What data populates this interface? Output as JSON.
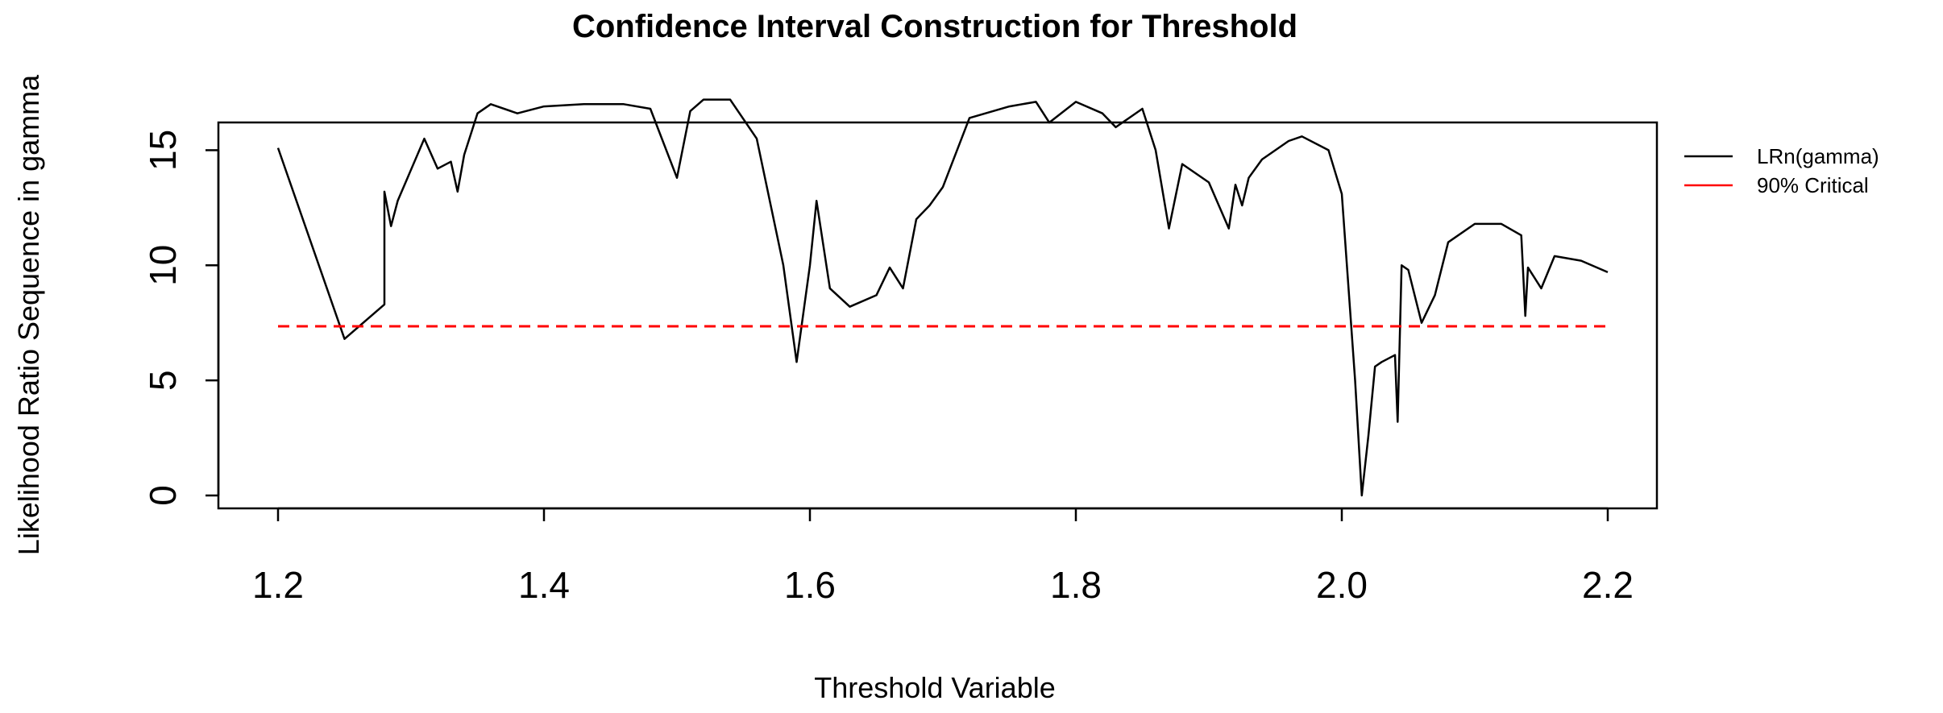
{
  "chart_data": {
    "type": "line",
    "title": "Confidence Interval Construction for Threshold",
    "xlabel": "Threshold Variable",
    "ylabel": "Likelihood Ratio Sequence in gamma",
    "xlim": [
      1.2,
      2.2
    ],
    "ylim": [
      0,
      17.5
    ],
    "xticks": [
      "1.2",
      "1.4",
      "1.6",
      "1.8",
      "2.0",
      "2.2"
    ],
    "yticks": [
      "0",
      "5",
      "10",
      "15"
    ],
    "legend": {
      "placement": "right, outside top"
    },
    "grid": false,
    "series": [
      {
        "name": "LRn(gamma)",
        "color": "#000000",
        "style": "solid",
        "x": [
          1.2,
          1.25,
          1.28,
          1.28,
          1.285,
          1.29,
          1.31,
          1.32,
          1.33,
          1.335,
          1.34,
          1.35,
          1.36,
          1.38,
          1.4,
          1.43,
          1.46,
          1.48,
          1.5,
          1.51,
          1.52,
          1.54,
          1.56,
          1.58,
          1.59,
          1.6,
          1.605,
          1.615,
          1.63,
          1.65,
          1.66,
          1.67,
          1.68,
          1.69,
          1.7,
          1.72,
          1.75,
          1.77,
          1.78,
          1.8,
          1.82,
          1.83,
          1.85,
          1.86,
          1.87,
          1.88,
          1.9,
          1.915,
          1.92,
          1.925,
          1.93,
          1.94,
          1.96,
          1.97,
          1.99,
          2.0,
          2.01,
          2.015,
          2.02,
          2.025,
          2.03,
          2.04,
          2.042,
          2.045,
          2.05,
          2.06,
          2.07,
          2.08,
          2.1,
          2.12,
          2.135,
          2.138,
          2.14,
          2.15,
          2.16,
          2.18,
          2.2
        ],
        "y": [
          15.1,
          6.8,
          8.3,
          13.2,
          11.7,
          12.8,
          15.5,
          14.2,
          14.5,
          13.2,
          14.8,
          16.6,
          17.0,
          16.6,
          16.9,
          17.0,
          17.0,
          16.8,
          13.8,
          16.7,
          17.2,
          17.2,
          15.5,
          10.0,
          5.8,
          10.0,
          12.8,
          9.0,
          8.2,
          8.7,
          9.9,
          9.0,
          12.0,
          12.6,
          13.4,
          16.4,
          16.9,
          17.1,
          16.2,
          17.1,
          16.6,
          16.0,
          16.8,
          15.0,
          11.6,
          14.4,
          13.6,
          11.6,
          13.5,
          12.6,
          13.8,
          14.6,
          15.4,
          15.6,
          15.0,
          13.1,
          5.0,
          0.0,
          2.6,
          5.6,
          5.8,
          6.1,
          3.2,
          10.0,
          9.8,
          7.5,
          8.7,
          11.0,
          11.8,
          11.8,
          11.3,
          7.8,
          9.9,
          9.0,
          10.4,
          10.2,
          9.7
        ]
      },
      {
        "name": "90% Critical",
        "color": "#ff0000",
        "style": "dashed",
        "x": [
          1.2,
          2.2
        ],
        "y": [
          7.35,
          7.35
        ]
      }
    ]
  }
}
